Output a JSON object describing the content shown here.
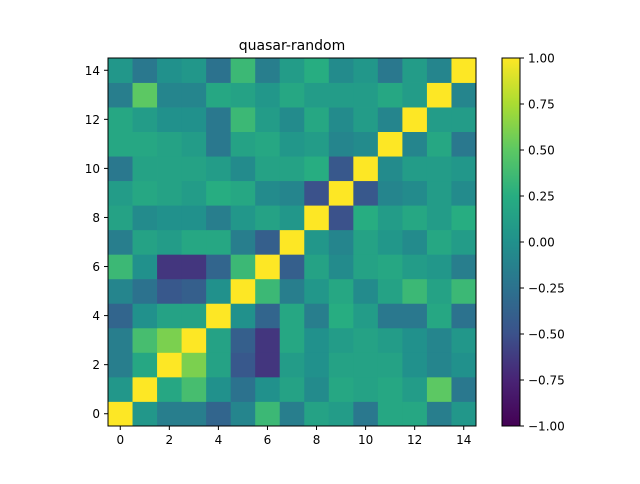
{
  "chart_data": {
    "type": "heatmap",
    "title": "quasar-random",
    "xlabel": "",
    "ylabel": "",
    "x_ticks": [
      0,
      2,
      4,
      6,
      8,
      10,
      12,
      14
    ],
    "y_ticks": [
      0,
      2,
      4,
      6,
      8,
      10,
      12,
      14
    ],
    "origin": "lower",
    "colormap": "viridis",
    "vmin": -1.0,
    "vmax": 1.0,
    "colorbar": {
      "ticks": [
        -1.0,
        -0.75,
        -0.5,
        -0.25,
        0.0,
        0.25,
        0.5,
        0.75,
        1.0
      ],
      "tick_labels": [
        "−1.00",
        "−0.75",
        "−0.50",
        "−0.25",
        "0.00",
        "0.25",
        "0.50",
        "0.75",
        "1.00"
      ],
      "placement": "right"
    },
    "matrix": [
      [
        1.0,
        0.05,
        -0.15,
        -0.15,
        -0.35,
        -0.1,
        0.35,
        -0.15,
        0.15,
        0.1,
        -0.2,
        0.2,
        0.2,
        -0.15,
        0.05
      ],
      [
        0.05,
        1.0,
        0.2,
        0.4,
        0.0,
        -0.25,
        0.0,
        0.15,
        -0.05,
        0.2,
        0.15,
        0.2,
        0.1,
        0.5,
        -0.2
      ],
      [
        -0.15,
        0.2,
        1.0,
        0.6,
        0.15,
        -0.45,
        -0.65,
        0.1,
        0.0,
        0.15,
        0.15,
        0.15,
        0.0,
        -0.1,
        0.0
      ],
      [
        -0.15,
        0.4,
        0.6,
        1.0,
        0.15,
        -0.4,
        -0.65,
        0.2,
        0.0,
        0.1,
        0.15,
        0.1,
        0.0,
        -0.1,
        0.05
      ],
      [
        -0.35,
        0.0,
        0.15,
        0.15,
        1.0,
        0.0,
        -0.35,
        0.2,
        -0.15,
        0.25,
        0.1,
        -0.2,
        -0.2,
        0.2,
        -0.25
      ],
      [
        -0.1,
        -0.25,
        -0.45,
        -0.4,
        0.0,
        1.0,
        0.35,
        -0.15,
        0.05,
        0.2,
        -0.05,
        0.15,
        0.35,
        0.15,
        0.35
      ],
      [
        0.35,
        0.0,
        -0.65,
        -0.65,
        -0.35,
        0.35,
        1.0,
        -0.4,
        0.15,
        -0.05,
        0.15,
        0.2,
        0.1,
        0.05,
        -0.15
      ],
      [
        -0.15,
        0.15,
        0.1,
        0.2,
        0.2,
        -0.15,
        -0.4,
        1.0,
        0.05,
        -0.1,
        0.15,
        0.05,
        -0.05,
        0.2,
        0.1
      ],
      [
        0.15,
        -0.05,
        0.0,
        0.0,
        -0.15,
        0.05,
        0.15,
        0.05,
        1.0,
        -0.5,
        0.25,
        0.1,
        0.2,
        0.1,
        0.25
      ],
      [
        0.1,
        0.2,
        0.15,
        0.1,
        0.25,
        0.2,
        -0.05,
        -0.1,
        -0.5,
        1.0,
        -0.45,
        -0.1,
        -0.05,
        0.1,
        -0.05
      ],
      [
        -0.2,
        0.15,
        0.15,
        0.15,
        0.1,
        -0.05,
        0.15,
        0.15,
        0.25,
        -0.45,
        1.0,
        -0.05,
        0.1,
        0.1,
        0.05
      ],
      [
        0.2,
        0.2,
        0.15,
        0.1,
        -0.2,
        0.15,
        0.2,
        0.05,
        0.1,
        -0.1,
        -0.05,
        1.0,
        -0.1,
        0.2,
        -0.2
      ],
      [
        0.2,
        0.1,
        0.0,
        0.0,
        -0.2,
        0.35,
        0.1,
        -0.05,
        0.2,
        -0.05,
        0.1,
        -0.1,
        1.0,
        0.1,
        0.1
      ],
      [
        -0.15,
        0.5,
        -0.1,
        -0.1,
        0.2,
        0.15,
        0.05,
        0.2,
        0.1,
        0.1,
        0.1,
        0.2,
        0.1,
        1.0,
        -0.1
      ],
      [
        0.05,
        -0.2,
        0.0,
        0.05,
        -0.25,
        0.35,
        -0.15,
        0.1,
        0.25,
        -0.05,
        0.05,
        -0.2,
        0.1,
        -0.1,
        1.0
      ]
    ]
  }
}
